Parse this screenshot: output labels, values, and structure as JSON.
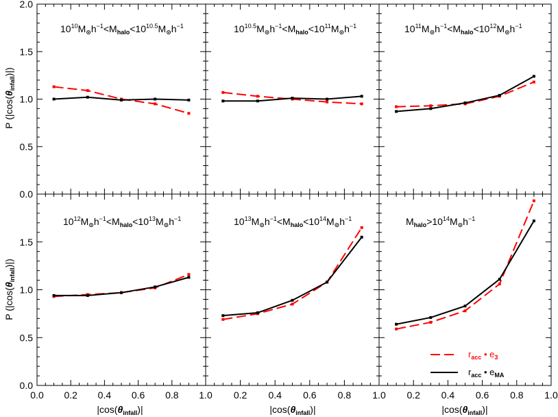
{
  "chart_data": [
    {
      "type": "line",
      "title": "10^{10}M_⊙h^{-1}<M_{halo}<10^{10.5}M_⊙h^{-1}",
      "x": [
        0.1,
        0.3,
        0.5,
        0.7,
        0.9
      ],
      "series": [
        {
          "name": "r_acc · e_3",
          "style": "dashed",
          "color": "#ff0000",
          "values": [
            1.13,
            1.09,
            1.0,
            0.95,
            0.85
          ]
        },
        {
          "name": "r_acc · e_MA",
          "style": "solid",
          "color": "#000000",
          "values": [
            1.0,
            1.02,
            0.99,
            1.0,
            0.99
          ]
        }
      ],
      "xlim": [
        0.0,
        1.0
      ],
      "ylim": [
        0.0,
        2.0
      ]
    },
    {
      "type": "line",
      "title": "10^{10.5}M_⊙h^{-1}<M_{halo}<10^{11}M_⊙h^{-1}",
      "x": [
        0.1,
        0.3,
        0.5,
        0.7,
        0.9
      ],
      "series": [
        {
          "name": "r_acc · e_3",
          "style": "dashed",
          "color": "#ff0000",
          "values": [
            1.07,
            1.03,
            1.0,
            0.97,
            0.95
          ]
        },
        {
          "name": "r_acc · e_MA",
          "style": "solid",
          "color": "#000000",
          "values": [
            0.98,
            0.98,
            1.01,
            1.0,
            1.03
          ]
        }
      ],
      "xlim": [
        0.0,
        1.0
      ],
      "ylim": [
        0.0,
        2.0
      ]
    },
    {
      "type": "line",
      "title": "10^{11}M_⊙h^{-1}<M_{halo}<10^{12}M_⊙h^{-1}",
      "x": [
        0.1,
        0.3,
        0.5,
        0.7,
        0.9
      ],
      "series": [
        {
          "name": "r_acc · e_3",
          "style": "dashed",
          "color": "#ff0000",
          "values": [
            0.92,
            0.93,
            0.95,
            1.03,
            1.18
          ]
        },
        {
          "name": "r_acc · e_MA",
          "style": "solid",
          "color": "#000000",
          "values": [
            0.87,
            0.9,
            0.96,
            1.04,
            1.24
          ]
        }
      ],
      "xlim": [
        0.0,
        1.0
      ],
      "ylim": [
        0.0,
        2.0
      ]
    },
    {
      "type": "line",
      "title": "10^{12}M_⊙h^{-1}<M_{halo}<10^{13}M_⊙h^{-1}",
      "x": [
        0.1,
        0.3,
        0.5,
        0.7,
        0.9
      ],
      "series": [
        {
          "name": "r_acc · e_3",
          "style": "dashed",
          "color": "#ff0000",
          "values": [
            0.93,
            0.95,
            0.97,
            1.02,
            1.16
          ]
        },
        {
          "name": "r_acc · e_MA",
          "style": "solid",
          "color": "#000000",
          "values": [
            0.94,
            0.94,
            0.97,
            1.03,
            1.13
          ]
        }
      ],
      "xlim": [
        0.0,
        1.0
      ],
      "ylim": [
        0.0,
        2.0
      ]
    },
    {
      "type": "line",
      "title": "10^{13}M_⊙h^{-1}<M_{halo}<10^{14}M_⊙h^{-1}",
      "x": [
        0.1,
        0.3,
        0.5,
        0.7,
        0.9
      ],
      "series": [
        {
          "name": "r_acc · e_3",
          "style": "dashed",
          "color": "#ff0000",
          "values": [
            0.69,
            0.75,
            0.85,
            1.08,
            1.65
          ]
        },
        {
          "name": "r_acc · e_MA",
          "style": "solid",
          "color": "#000000",
          "values": [
            0.73,
            0.76,
            0.89,
            1.08,
            1.55
          ]
        }
      ],
      "xlim": [
        0.0,
        1.0
      ],
      "ylim": [
        0.0,
        2.0
      ]
    },
    {
      "type": "line",
      "title": "M_{halo}>10^{14}M_⊙h^{-1}",
      "x": [
        0.1,
        0.3,
        0.5,
        0.7,
        0.9
      ],
      "series": [
        {
          "name": "r_acc · e_3",
          "style": "dashed",
          "color": "#ff0000",
          "values": [
            0.59,
            0.66,
            0.78,
            1.06,
            1.93
          ]
        },
        {
          "name": "r_acc · e_MA",
          "style": "solid",
          "color": "#000000",
          "values": [
            0.64,
            0.71,
            0.83,
            1.11,
            1.72
          ]
        }
      ],
      "xlim": [
        0.0,
        1.0
      ],
      "ylim": [
        0.0,
        2.0
      ]
    }
  ],
  "axes": {
    "ylabel": "P (|cos(θ_infall)|)",
    "xlabel": "|cos(θ_infall)|",
    "x_ticks": [
      "0.0",
      "0.2",
      "0.4",
      "0.6",
      "0.8",
      "1.0"
    ],
    "y_ticks_top": [
      "0.0",
      "0.5",
      "1.0",
      "1.5",
      "2.0"
    ],
    "y_ticks_bottom": [
      "0.0",
      "0.5",
      "1.0",
      "1.5"
    ]
  },
  "legend": {
    "placement": "bottom-right",
    "entries": [
      {
        "label": "r_acc · e_3",
        "color": "#ff0000",
        "style": "dashed"
      },
      {
        "label": "r_acc · e_MA",
        "color": "#000000",
        "style": "solid"
      }
    ]
  },
  "panel_labels": [
    {
      "pre": "10",
      "e1": "10",
      "mid": "M",
      "sun": "⊙",
      "h": "h",
      "hexp": "−1",
      "lt": "<M",
      "halo": "halo",
      "lt2": "<10",
      "e2": "10.5",
      "m2": "M",
      "h2exp": "−1"
    },
    {
      "pre": "10",
      "e1": "10.5",
      "mid": "M",
      "sun": "⊙",
      "h": "h",
      "hexp": "−1",
      "lt": "<M",
      "halo": "halo",
      "lt2": "<10",
      "e2": "11",
      "m2": "M",
      "h2exp": "−1"
    },
    {
      "pre": "10",
      "e1": "11",
      "mid": "M",
      "sun": "⊙",
      "h": "h",
      "hexp": "−1",
      "lt": "<M",
      "halo": "halo",
      "lt2": "<10",
      "e2": "12",
      "m2": "M",
      "h2exp": "−1"
    },
    {
      "pre": "10",
      "e1": "12",
      "mid": "M",
      "sun": "⊙",
      "h": "h",
      "hexp": "−1",
      "lt": "<M",
      "halo": "halo",
      "lt2": "<10",
      "e2": "13",
      "m2": "M",
      "h2exp": "−1"
    },
    {
      "pre": "10",
      "e1": "13",
      "mid": "M",
      "sun": "⊙",
      "h": "h",
      "hexp": "−1",
      "lt": "<M",
      "halo": "halo",
      "lt2": "<10",
      "e2": "14",
      "m2": "M",
      "h2exp": "−1"
    }
  ],
  "panel6_label": {
    "m": "M",
    "halo": "halo",
    "gt": ">10",
    "e": "14",
    "m2": "M",
    "sun": "⊙",
    "h": "h",
    "hexp": "−1"
  },
  "legend_text": {
    "r": "r",
    "acc": "acc",
    "dot": " • e",
    "e3sub": "3",
    "emasub": "MA"
  },
  "axis_text": {
    "p": "P (|cos(",
    "theta": "θ",
    "infall": "infall",
    "close": ")|)",
    "xopen": "|cos(",
    "xclose": ")|"
  }
}
